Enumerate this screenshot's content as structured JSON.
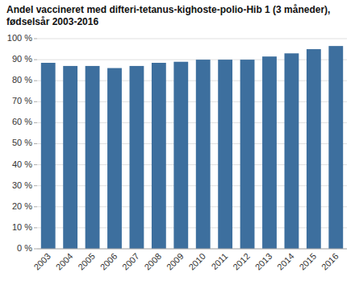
{
  "chart_data": {
    "type": "bar",
    "title": "Andel vaccineret med difteri-tetanus-kighoste-polio-Hib 1 (3 måneder),\nfødselsår 2003-2016",
    "categories": [
      "2003",
      "2004",
      "2005",
      "2006",
      "2007",
      "2008",
      "2009",
      "2010",
      "2011",
      "2012",
      "2013",
      "2014",
      "2015",
      "2016"
    ],
    "values": [
      88.5,
      87.0,
      87.0,
      86.0,
      87.0,
      88.5,
      89.0,
      90.0,
      90.0,
      90.0,
      91.5,
      93.0,
      95.0,
      96.5
    ],
    "color": "#3d6f9e",
    "ylim": [
      0,
      100
    ],
    "yticks": [
      {
        "value": 0,
        "label": "0 %"
      },
      {
        "value": 10,
        "label": "10 %"
      },
      {
        "value": 20,
        "label": "20 %"
      },
      {
        "value": 30,
        "label": "30 %"
      },
      {
        "value": 40,
        "label": "40 %"
      },
      {
        "value": 50,
        "label": "50 %"
      },
      {
        "value": 60,
        "label": "60 %"
      },
      {
        "value": 70,
        "label": "70 %"
      },
      {
        "value": 80,
        "label": "80 %"
      },
      {
        "value": 90,
        "label": "90 %"
      },
      {
        "value": 100,
        "label": "100 %"
      }
    ],
    "grid": true
  }
}
